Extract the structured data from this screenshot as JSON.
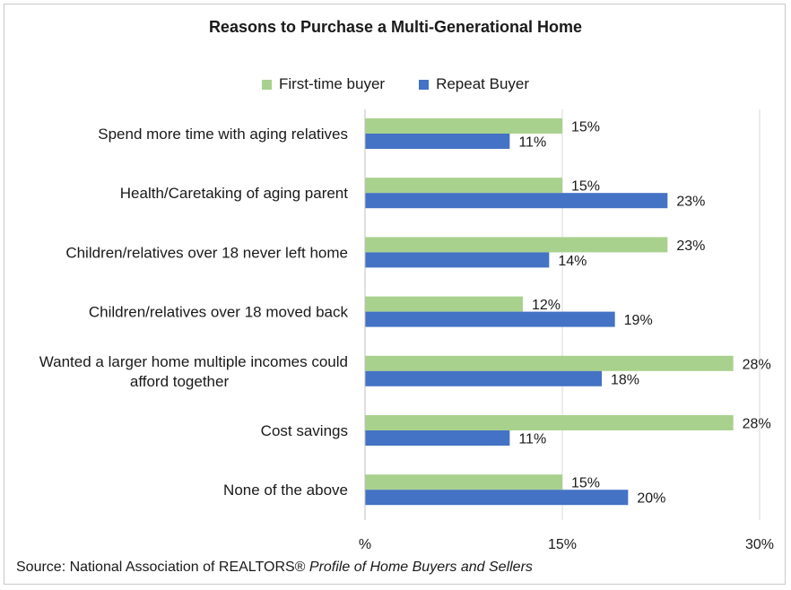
{
  "chart_data": {
    "type": "bar",
    "orientation": "horizontal",
    "title": "Reasons to Purchase a Multi-Generational Home",
    "categories": [
      "Spend more time with aging relatives",
      "Health/Caretaking of aging parent",
      "Children/relatives over 18 never left home",
      "Children/relatives over 18 moved back",
      "Wanted a larger home multiple incomes could afford together",
      "Cost savings",
      "None of the above"
    ],
    "category_lines": [
      [
        "Spend more time with aging relatives"
      ],
      [
        "Health/Caretaking of aging parent"
      ],
      [
        "Children/relatives over 18 never left home"
      ],
      [
        "Children/relatives over 18 moved back"
      ],
      [
        "Wanted a larger home multiple incomes could",
        "afford together"
      ],
      [
        "Cost savings"
      ],
      [
        "None of the above"
      ]
    ],
    "series": [
      {
        "name": "First-time buyer",
        "color": "#a9d18e",
        "values": [
          15,
          15,
          23,
          12,
          28,
          28,
          15
        ]
      },
      {
        "name": "Repeat Buyer",
        "color": "#4472c4",
        "values": [
          11,
          23,
          14,
          19,
          18,
          11,
          20
        ]
      }
    ],
    "xlim": [
      0,
      30
    ],
    "xticks": [
      0,
      15,
      30
    ],
    "xtick_labels": [
      "%",
      "15%",
      "30%"
    ],
    "value_suffix": "%",
    "grid": true,
    "legend_position": "top"
  },
  "legend": {
    "first_label": "First-time buyer",
    "repeat_label": "Repeat Buyer"
  },
  "source": {
    "prefix": "Source: National Association of REALTORS® ",
    "italic": "Profile of Home Buyers and Sellers"
  }
}
